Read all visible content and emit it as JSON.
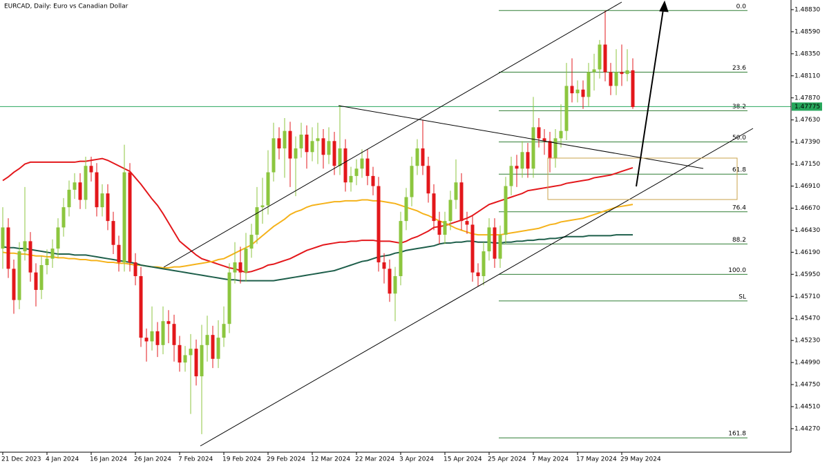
{
  "chart_data": {
    "type": "candlestick",
    "title": "EURCAD, Daily:  Euro vs Canadian Dollar",
    "categories": [
      "21 Dec 2023",
      null,
      null,
      null,
      null,
      null,
      null,
      null,
      "4 Jan 2024",
      null,
      null,
      null,
      null,
      null,
      null,
      null,
      "16 Jan 2024",
      null,
      null,
      null,
      null,
      null,
      null,
      null,
      "26 Jan 2024",
      null,
      null,
      null,
      null,
      null,
      null,
      null,
      "7 Feb 2024",
      null,
      null,
      null,
      null,
      null,
      null,
      null,
      "19 Feb 2024",
      null,
      null,
      null,
      null,
      null,
      null,
      null,
      "29 Feb 2024",
      null,
      null,
      null,
      null,
      null,
      null,
      null,
      "12 Mar 2024",
      null,
      null,
      null,
      null,
      null,
      null,
      null,
      "22 Mar 2024",
      null,
      null,
      null,
      null,
      null,
      null,
      null,
      "3 Apr 2024",
      null,
      null,
      null,
      null,
      null,
      null,
      null,
      "15 Apr 2024",
      null,
      null,
      null,
      null,
      null,
      null,
      null,
      "25 Apr 2024",
      null,
      null,
      null,
      null,
      null,
      null,
      null,
      "7 May 2024",
      null,
      null,
      null,
      null,
      null,
      null,
      null,
      "17 May 2024",
      null,
      null,
      null,
      null,
      null,
      null,
      null,
      "29 May 2024",
      null,
      null
    ],
    "open": [
      1.4623,
      1.4646,
      1.4601,
      1.4567,
      1.462,
      1.4631,
      1.4597,
      1.4578,
      1.4605,
      1.4612,
      1.4623,
      1.4646,
      1.4668,
      1.4687,
      1.4695,
      1.4676,
      1.4713,
      1.4706,
      1.4668,
      1.4683,
      1.4653,
      1.4627,
      1.4608,
      1.4706,
      1.4608,
      1.4593,
      1.4526,
      1.4522,
      1.4533,
      1.4518,
      1.4544,
      1.4541,
      1.4518,
      1.4499,
      1.4507,
      1.4514,
      1.4484,
      1.4518,
      1.4529,
      1.4503,
      1.4526,
      1.4541,
      1.4597,
      1.4608,
      1.4597,
      1.4623,
      1.4638,
      1.4668,
      1.467,
      1.4706,
      1.4743,
      1.4732,
      1.4751,
      1.4721,
      1.4732,
      1.4747,
      1.4728,
      1.474,
      1.4743,
      1.4725,
      1.474,
      1.4713,
      1.4732,
      1.4695,
      1.4702,
      1.471,
      1.4721,
      1.4702,
      1.4691,
      1.4608,
      1.4601,
      1.4574,
      1.4593,
      1.4653,
      1.4679,
      1.4713,
      1.4732,
      1.4713,
      1.4683,
      1.4653,
      1.4638,
      1.4653,
      1.4676,
      1.4695,
      1.4653,
      1.4649,
      1.4597,
      1.4593,
      1.462,
      1.4646,
      1.4612,
      1.4638,
      1.4691,
      1.4713,
      1.471,
      1.4728,
      1.471,
      1.4755,
      1.4743,
      1.474,
      1.4721,
      1.4743,
      1.4751,
      1.48,
      1.4792,
      1.4796,
      1.4788,
      1.4815,
      1.4818,
      1.4845,
      1.4815,
      1.48,
      1.4815,
      1.4813,
      1.4817
    ],
    "high": [
      1.4668,
      1.4656,
      1.4611,
      1.463,
      1.469,
      1.4641,
      1.4607,
      1.4615,
      1.4622,
      1.4633,
      1.4656,
      1.4678,
      1.4697,
      1.4705,
      1.4705,
      1.4723,
      1.4723,
      1.4716,
      1.4693,
      1.4693,
      1.4663,
      1.4637,
      1.4736,
      1.4716,
      1.4618,
      1.4603,
      1.4536,
      1.456,
      1.4543,
      1.456,
      1.4556,
      1.4551,
      1.4528,
      1.4517,
      1.453,
      1.4524,
      1.454,
      1.455,
      1.4539,
      1.4545,
      1.456,
      1.4607,
      1.463,
      1.4625,
      1.464,
      1.465,
      1.469,
      1.47,
      1.473,
      1.476,
      1.4755,
      1.4765,
      1.4761,
      1.4745,
      1.476,
      1.4757,
      1.4755,
      1.476,
      1.4753,
      1.4755,
      1.475,
      1.4779,
      1.4742,
      1.4712,
      1.472,
      1.4731,
      1.4731,
      1.4712,
      1.4701,
      1.4618,
      1.4611,
      1.4603,
      1.4663,
      1.4689,
      1.4723,
      1.4742,
      1.4763,
      1.4723,
      1.4693,
      1.4663,
      1.4663,
      1.4686,
      1.472,
      1.4705,
      1.4663,
      1.4659,
      1.4607,
      1.463,
      1.4656,
      1.4656,
      1.4648,
      1.4701,
      1.4723,
      1.4725,
      1.474,
      1.4738,
      1.4788,
      1.4765,
      1.4753,
      1.475,
      1.4753,
      1.478,
      1.4825,
      1.483,
      1.4806,
      1.4806,
      1.4825,
      1.4835,
      1.485,
      1.4882,
      1.4825,
      1.484,
      1.4845,
      1.484,
      1.483
    ],
    "low": [
      1.4601,
      1.4591,
      1.4552,
      1.4557,
      1.461,
      1.4587,
      1.456,
      1.4568,
      1.4595,
      1.4602,
      1.4613,
      1.4636,
      1.4658,
      1.4677,
      1.4666,
      1.4666,
      1.4696,
      1.4658,
      1.4658,
      1.4643,
      1.4617,
      1.4598,
      1.4598,
      1.4598,
      1.4583,
      1.4516,
      1.45,
      1.4512,
      1.4505,
      1.4508,
      1.452,
      1.45,
      1.4489,
      1.4489,
      1.4443,
      1.4474,
      1.4421,
      1.45,
      1.4493,
      1.4493,
      1.4516,
      1.4531,
      1.4585,
      1.4585,
      1.4587,
      1.4613,
      1.4628,
      1.465,
      1.466,
      1.4696,
      1.472,
      1.47,
      1.469,
      1.468,
      1.4722,
      1.471,
      1.4718,
      1.4715,
      1.471,
      1.4715,
      1.4703,
      1.4703,
      1.4685,
      1.4685,
      1.4692,
      1.47,
      1.4692,
      1.4681,
      1.4598,
      1.4585,
      1.4565,
      1.4544,
      1.4583,
      1.4643,
      1.4669,
      1.4703,
      1.4703,
      1.4673,
      1.4643,
      1.4628,
      1.4628,
      1.4643,
      1.4666,
      1.4643,
      1.4639,
      1.4587,
      1.4582,
      1.4583,
      1.461,
      1.4602,
      1.4602,
      1.4628,
      1.4681,
      1.469,
      1.47,
      1.47,
      1.47,
      1.4733,
      1.4725,
      1.4706,
      1.4711,
      1.4733,
      1.4741,
      1.4782,
      1.4782,
      1.4775,
      1.4778,
      1.4795,
      1.4808,
      1.4805,
      1.479,
      1.479,
      1.48,
      1.4805,
      1.4775
    ],
    "close": [
      1.4646,
      1.4601,
      1.4567,
      1.462,
      1.4631,
      1.4597,
      1.4578,
      1.4605,
      1.4612,
      1.4623,
      1.4646,
      1.4668,
      1.4687,
      1.4695,
      1.4676,
      1.4713,
      1.4706,
      1.4668,
      1.4683,
      1.4653,
      1.4627,
      1.4608,
      1.4706,
      1.4608,
      1.4593,
      1.4526,
      1.4522,
      1.4533,
      1.4518,
      1.4544,
      1.4541,
      1.4518,
      1.4499,
      1.4507,
      1.4514,
      1.4484,
      1.4518,
      1.4529,
      1.4503,
      1.4526,
      1.4541,
      1.4597,
      1.4608,
      1.4597,
      1.4623,
      1.4638,
      1.4668,
      1.467,
      1.4706,
      1.4743,
      1.4732,
      1.4751,
      1.4721,
      1.4732,
      1.4747,
      1.4728,
      1.474,
      1.4743,
      1.4725,
      1.474,
      1.4713,
      1.4732,
      1.4695,
      1.4702,
      1.471,
      1.4721,
      1.4702,
      1.4691,
      1.4608,
      1.4601,
      1.4574,
      1.4593,
      1.4653,
      1.4679,
      1.4713,
      1.4732,
      1.4713,
      1.4683,
      1.4653,
      1.4638,
      1.4653,
      1.4676,
      1.4695,
      1.4653,
      1.4649,
      1.4597,
      1.4593,
      1.462,
      1.4646,
      1.4612,
      1.4638,
      1.4691,
      1.4713,
      1.471,
      1.4728,
      1.471,
      1.4755,
      1.4743,
      1.474,
      1.4721,
      1.4743,
      1.4751,
      1.48,
      1.4792,
      1.4796,
      1.4788,
      1.4815,
      1.4818,
      1.4845,
      1.4815,
      1.48,
      1.4815,
      1.4813,
      1.4817,
      1.4777
    ],
    "bull_color": "#8cc63f",
    "bear_color": "#e3171b",
    "series": [
      {
        "color": "#e3171b",
        "values": [
          1.4697,
          1.4701,
          1.4706,
          1.471,
          1.4715,
          1.4717,
          1.4717,
          1.4717,
          1.4717,
          1.4717,
          1.4717,
          1.4717,
          1.4717,
          1.4717,
          1.4718,
          1.4718,
          1.4719,
          1.472,
          1.4721,
          1.4719,
          1.4716,
          1.4713,
          1.471,
          1.4707,
          1.47,
          1.4693,
          1.4685,
          1.4677,
          1.467,
          1.4661,
          1.4651,
          1.4641,
          1.4631,
          1.4626,
          1.4621,
          1.4616,
          1.4612,
          1.461,
          1.4608,
          1.4606,
          1.4604,
          1.4602,
          1.4601,
          1.4599,
          1.4597,
          1.4598,
          1.46,
          1.4602,
          1.4605,
          1.4606,
          1.4608,
          1.461,
          1.4612,
          1.4615,
          1.4618,
          1.4621,
          1.4623,
          1.4625,
          1.4627,
          1.4628,
          1.4629,
          1.463,
          1.463,
          1.4631,
          1.4631,
          1.4632,
          1.4632,
          1.4632,
          1.4631,
          1.4631,
          1.4631,
          1.463,
          1.4629,
          1.4631,
          1.4634,
          1.4636,
          1.4639,
          1.4642,
          1.4646,
          1.4647,
          1.4648,
          1.465,
          1.4652,
          1.4654,
          1.4656,
          1.4659,
          1.4663,
          1.4667,
          1.4671,
          1.4673,
          1.4675,
          1.4677,
          1.4679,
          1.4681,
          1.4683,
          1.4686,
          1.4687,
          1.4688,
          1.4689,
          1.469,
          1.4691,
          1.4692,
          1.4694,
          1.4695,
          1.4696,
          1.4697,
          1.4698,
          1.47,
          1.4701,
          1.4702,
          1.4703,
          1.4705,
          1.4707,
          1.4709,
          1.4711
        ]
      },
      {
        "color": "#f5b21a",
        "values": [
          1.4619,
          1.4618,
          1.4618,
          1.4617,
          1.4617,
          1.4616,
          1.4615,
          1.4615,
          1.4614,
          1.4614,
          1.4613,
          1.4613,
          1.4612,
          1.4612,
          1.4611,
          1.4611,
          1.461,
          1.461,
          1.4609,
          1.4608,
          1.4608,
          1.4607,
          1.4607,
          1.4606,
          1.4605,
          1.4605,
          1.4604,
          1.4603,
          1.4603,
          1.4602,
          1.4602,
          1.4603,
          1.4603,
          1.4604,
          1.4605,
          1.4606,
          1.4607,
          1.4608,
          1.4609,
          1.4611,
          1.4612,
          1.4615,
          1.4618,
          1.4621,
          1.4624,
          1.4627,
          1.4632,
          1.4637,
          1.4642,
          1.4647,
          1.4651,
          1.4655,
          1.466,
          1.4663,
          1.4665,
          1.4668,
          1.467,
          1.4671,
          1.4672,
          1.4673,
          1.4674,
          1.4674,
          1.4675,
          1.4675,
          1.4675,
          1.4676,
          1.4676,
          1.4675,
          1.4675,
          1.4674,
          1.4673,
          1.4672,
          1.467,
          1.4668,
          1.4666,
          1.4664,
          1.4661,
          1.4659,
          1.4656,
          1.4653,
          1.4651,
          1.4648,
          1.4645,
          1.4643,
          1.4641,
          1.4639,
          1.4638,
          1.4638,
          1.4638,
          1.4638,
          1.4638,
          1.4639,
          1.464,
          1.4641,
          1.4642,
          1.4643,
          1.4644,
          1.4645,
          1.4647,
          1.4649,
          1.465,
          1.4652,
          1.4653,
          1.4654,
          1.4655,
          1.4656,
          1.4658,
          1.466,
          1.4662,
          1.4664,
          1.4666,
          1.4668,
          1.4669,
          1.467,
          1.4671
        ]
      },
      {
        "color": "#1d5e4a",
        "values": [
          1.4625,
          1.4624,
          1.4624,
          1.4623,
          1.4623,
          1.4622,
          1.4621,
          1.462,
          1.4619,
          1.4618,
          1.4617,
          1.4617,
          1.4617,
          1.4616,
          1.4616,
          1.4616,
          1.4615,
          1.4614,
          1.4613,
          1.4612,
          1.4611,
          1.461,
          1.4609,
          1.4608,
          1.4607,
          1.4605,
          1.4604,
          1.4603,
          1.4602,
          1.4601,
          1.46,
          1.4599,
          1.4598,
          1.4597,
          1.4596,
          1.4595,
          1.4594,
          1.4593,
          1.4592,
          1.4591,
          1.459,
          1.4589,
          1.4589,
          1.4588,
          1.4588,
          1.4588,
          1.4588,
          1.4588,
          1.4588,
          1.4588,
          1.4589,
          1.459,
          1.4591,
          1.4592,
          1.4593,
          1.4594,
          1.4595,
          1.4596,
          1.4597,
          1.4598,
          1.4599,
          1.4601,
          1.4603,
          1.4605,
          1.4607,
          1.4609,
          1.461,
          1.4612,
          1.4614,
          1.4615,
          1.4616,
          1.4618,
          1.4619,
          1.4621,
          1.4622,
          1.4623,
          1.4624,
          1.4625,
          1.4626,
          1.4628,
          1.4629,
          1.4629,
          1.463,
          1.463,
          1.4631,
          1.4631,
          1.463,
          1.463,
          1.463,
          1.4629,
          1.4629,
          1.463,
          1.463,
          1.4631,
          1.4631,
          1.4632,
          1.4632,
          1.4633,
          1.4633,
          1.4634,
          1.4634,
          1.4635,
          1.4636,
          1.4636,
          1.4636,
          1.4636,
          1.4637,
          1.4637,
          1.4637,
          1.4637,
          1.4637,
          1.4638,
          1.4638,
          1.4638,
          1.4638
        ]
      }
    ],
    "fib_levels": [
      {
        "label": "0.0",
        "value": 1.4882
      },
      {
        "label": "23.6",
        "value": 1.4815
      },
      {
        "label": "38.2",
        "value": 1.4773
      },
      {
        "label": "50.0",
        "value": 1.4739
      },
      {
        "label": "61.8",
        "value": 1.4704
      },
      {
        "label": "76.4",
        "value": 1.4663
      },
      {
        "label": "88.2",
        "value": 1.4628
      },
      {
        "label": "100.0",
        "value": 1.4595
      },
      {
        "label": "SL",
        "value": 1.4566
      },
      {
        "label": "161.8",
        "value": 1.4417
      }
    ],
    "fib_color": "#2e7d32",
    "current_price": 1.47775,
    "current_price_color": "#26a65b",
    "ylim": [
      1.44014,
      1.48935
    ],
    "yticks": [
      {
        "value": 1.4883,
        "label": "1.48830"
      },
      {
        "value": 1.4859,
        "label": "1.48590"
      },
      {
        "value": 1.4835,
        "label": "1.48350"
      },
      {
        "value": 1.4811,
        "label": "1.48110"
      },
      {
        "value": 1.4787,
        "label": "1.47870"
      },
      {
        "value": 1.4763,
        "label": "1.47630"
      },
      {
        "value": 1.4739,
        "label": "1.47390"
      },
      {
        "value": 1.4715,
        "label": "1.47150"
      },
      {
        "value": 1.4691,
        "label": "1.46910"
      },
      {
        "value": 1.4667,
        "label": "1.46670"
      },
      {
        "value": 1.4643,
        "label": "1.46430"
      },
      {
        "value": 1.4619,
        "label": "1.46190"
      },
      {
        "value": 1.4595,
        "label": "1.45950"
      },
      {
        "value": 1.4571,
        "label": "1.45710"
      },
      {
        "value": 1.4547,
        "label": "1.45470"
      },
      {
        "value": 1.4523,
        "label": "1.45230"
      },
      {
        "value": 1.4499,
        "label": "1.44990"
      },
      {
        "value": 1.4475,
        "label": "1.44750"
      },
      {
        "value": 1.4451,
        "label": "1.44510"
      },
      {
        "value": 1.4427,
        "label": "1.44270"
      }
    ]
  }
}
